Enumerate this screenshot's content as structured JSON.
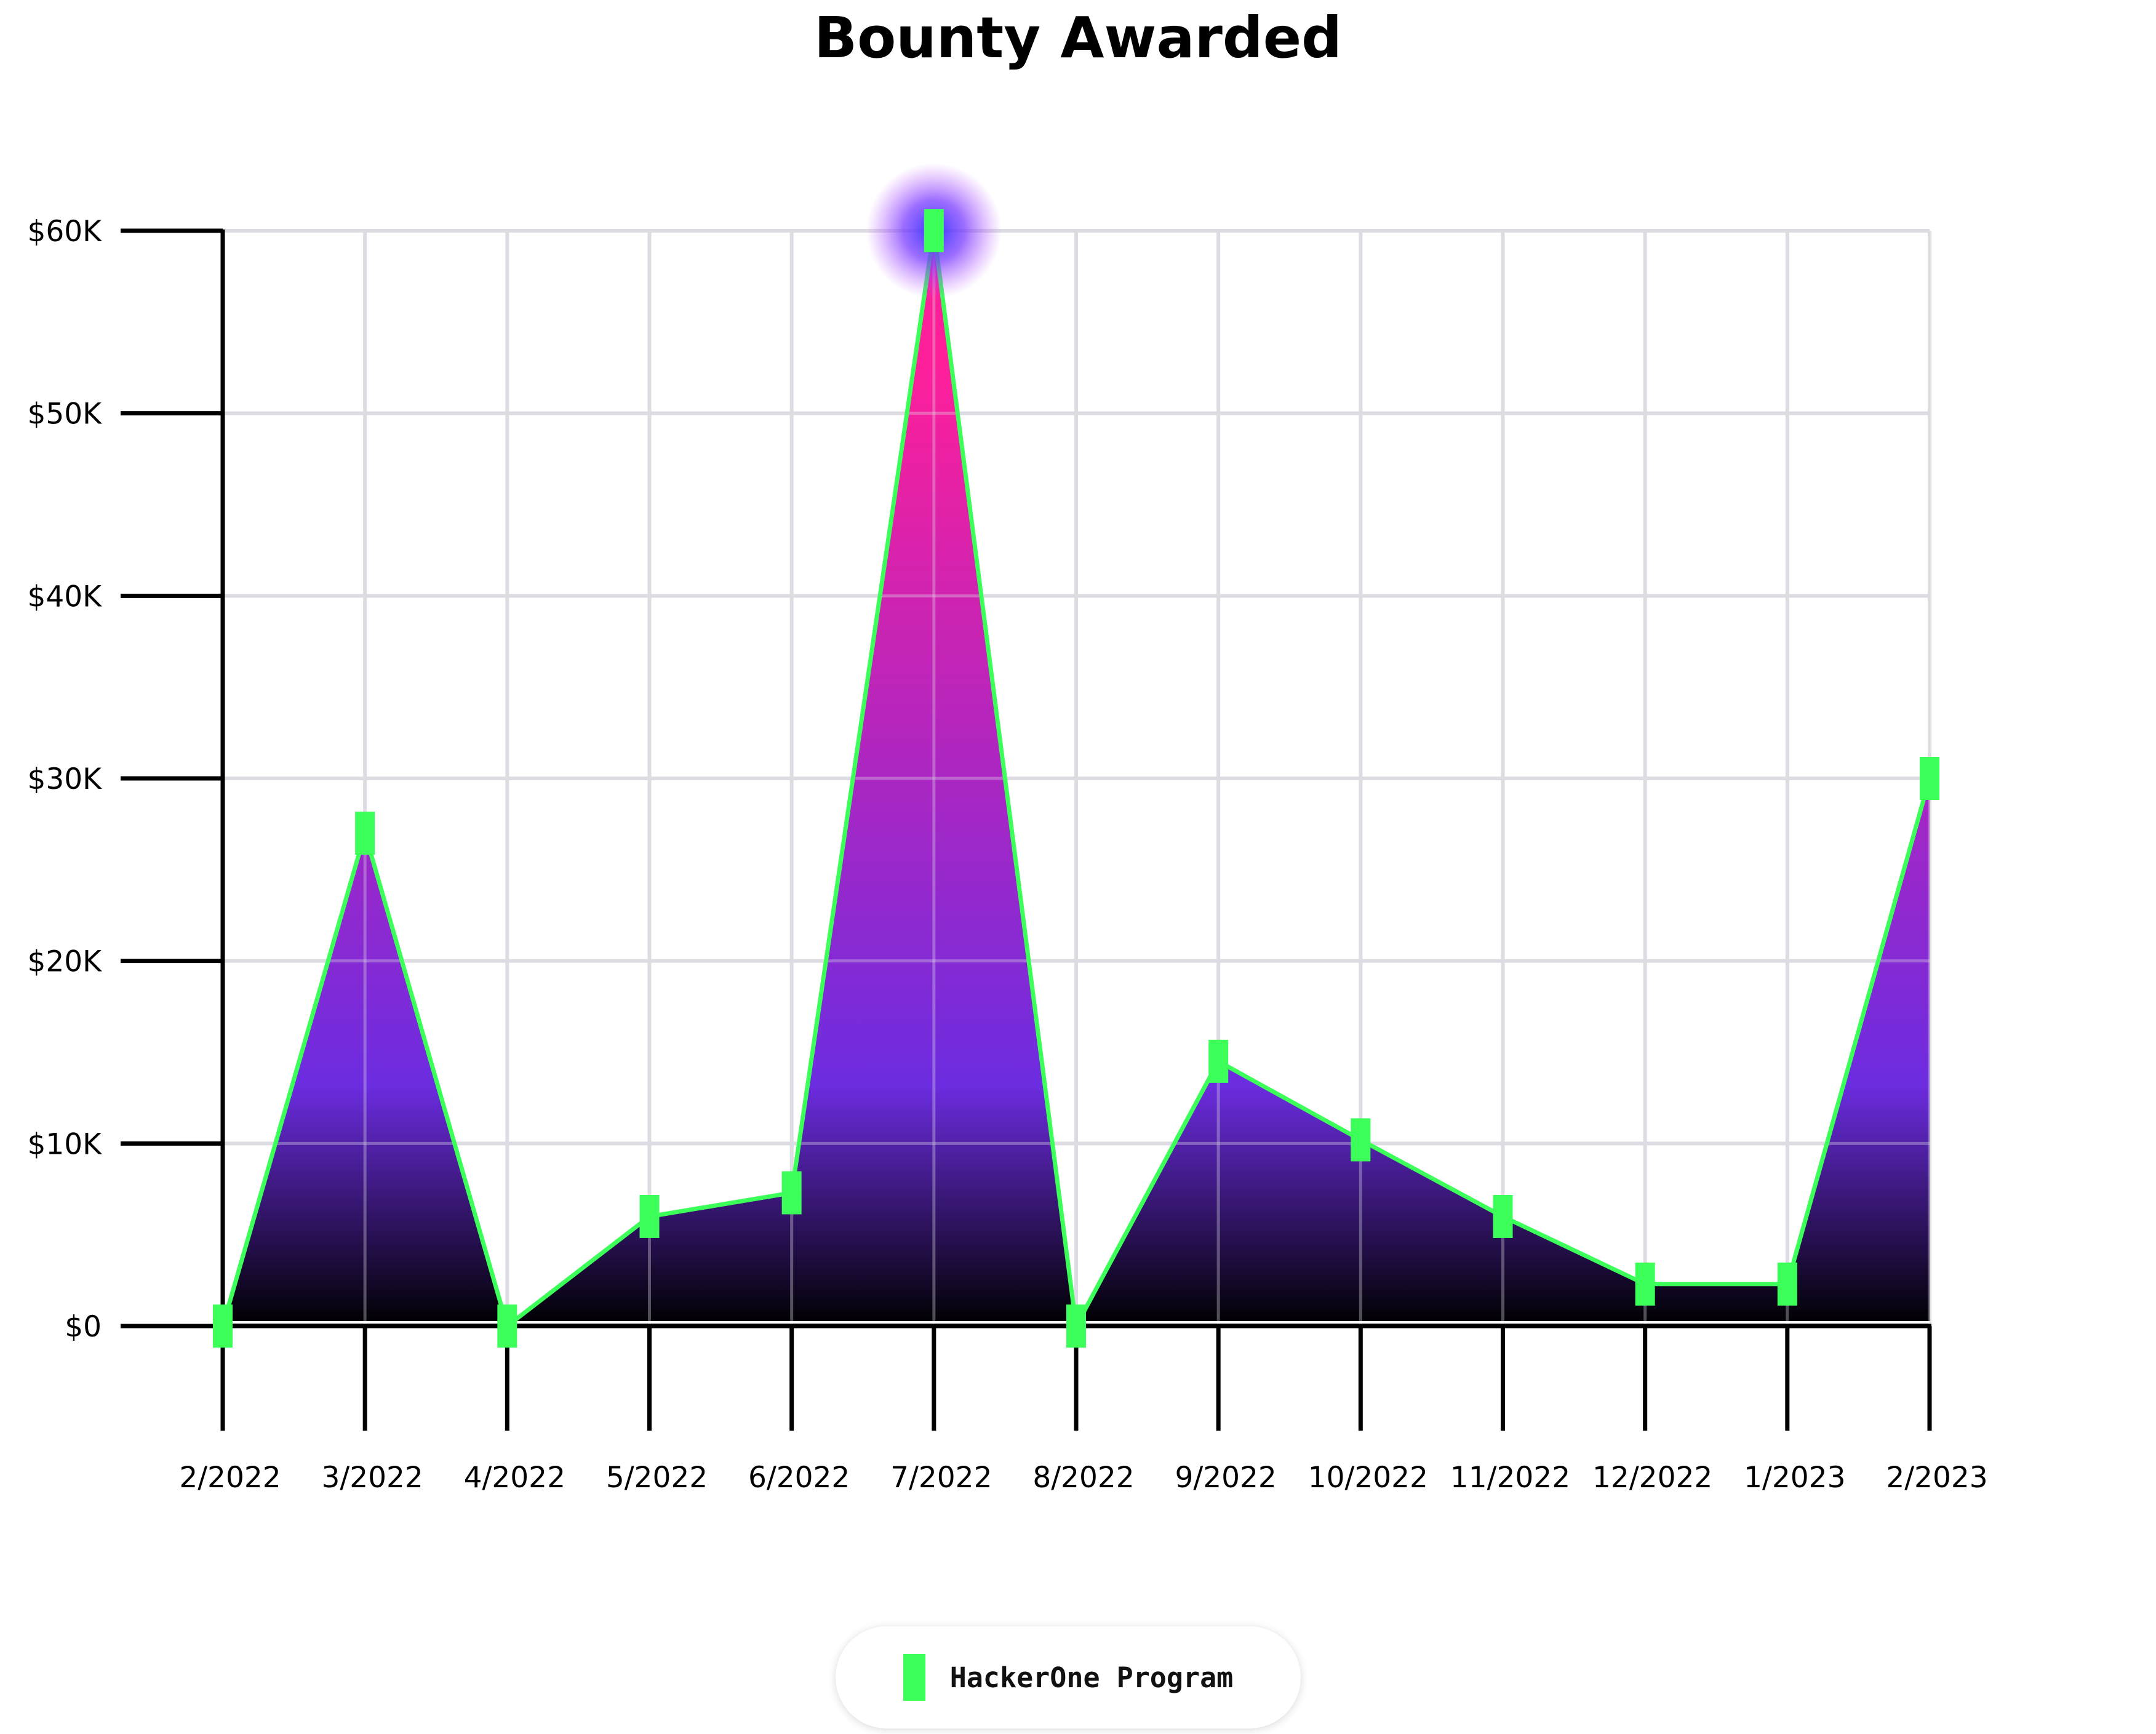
{
  "chart_data": {
    "type": "area",
    "title": "Bounty Awarded",
    "categories": [
      "2/2022",
      "3/2022",
      "4/2022",
      "5/2022",
      "6/2022",
      "7/2022",
      "8/2022",
      "9/2022",
      "10/2022",
      "11/2022",
      "12/2022",
      "1/2023",
      "2/2023"
    ],
    "series": [
      {
        "name": "HackerOne Program",
        "values": [
          0,
          27000,
          0,
          6000,
          7300,
          60000,
          0,
          14500,
          10200,
          6000,
          2300,
          2300,
          30000
        ],
        "color": "#3dff5a"
      }
    ],
    "y_ticks": [
      0,
      10000,
      20000,
      30000,
      40000,
      50000,
      60000
    ],
    "y_tick_labels": [
      "$0",
      "$10K",
      "$20K",
      "$30K",
      "$40K",
      "$50K",
      "$60K"
    ],
    "ylim": [
      0,
      60000
    ],
    "grid": true,
    "legend_position": "bottom-center",
    "fill_gradient": [
      "#ff1f9a",
      "#6c2ce0",
      "#000000"
    ],
    "highlight_glow_color": "#3a3aff"
  }
}
